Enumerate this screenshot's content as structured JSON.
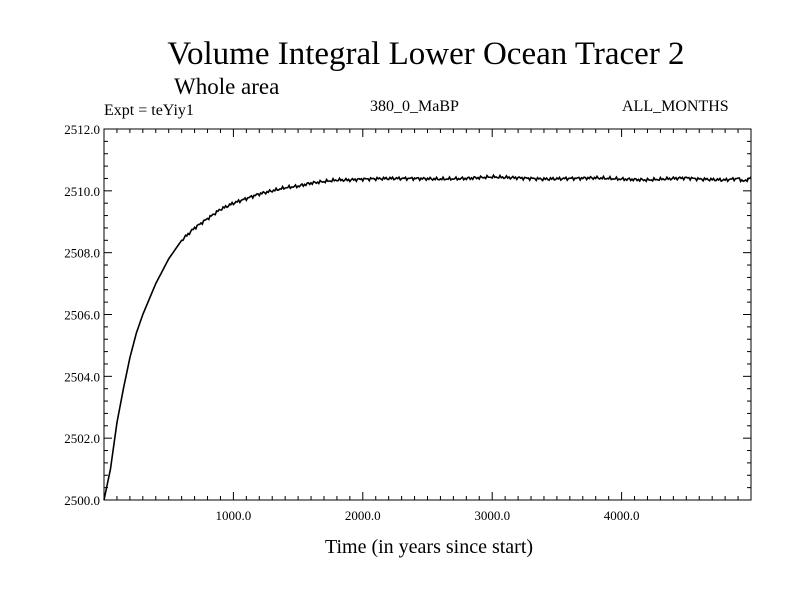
{
  "chart_data": {
    "type": "line",
    "title": "Volume Integral Lower Ocean Tracer 2",
    "subtitle": "Whole area",
    "experiment": "Expt = teYiy1",
    "period": "380_0_MaBP",
    "season": "ALL_MONTHS",
    "xlabel": "Time (in years since start)",
    "ylabel": "",
    "xlim": [
      0,
      5000
    ],
    "ylim": [
      2500.0,
      2512.0
    ],
    "xticks": [
      1000,
      2000,
      3000,
      4000
    ],
    "xtick_labels": [
      "1000.0",
      "2000.0",
      "3000.0",
      "4000.0"
    ],
    "yticks": [
      2500,
      2502,
      2504,
      2506,
      2508,
      2510,
      2512
    ],
    "ytick_labels": [
      "2500.0",
      "2502.0",
      "2504.0",
      "2506.0",
      "2508.0",
      "2510.0",
      "2512.0"
    ],
    "series": [
      {
        "name": "Lower Ocean Tracer 2",
        "color": "#000000",
        "x": [
          0,
          50,
          100,
          150,
          200,
          250,
          300,
          400,
          500,
          600,
          700,
          800,
          900,
          1000,
          1100,
          1200,
          1300,
          1400,
          1500,
          1600,
          1700,
          1800,
          1900,
          2000,
          2200,
          2400,
          2600,
          2800,
          3000,
          3200,
          3400,
          3600,
          3800,
          4000,
          4200,
          4400,
          4500,
          4600,
          4800,
          4900,
          4950,
          5000
        ],
        "values": [
          2500.0,
          2501.0,
          2502.5,
          2503.6,
          2504.6,
          2505.4,
          2506.0,
          2507.0,
          2507.8,
          2508.4,
          2508.8,
          2509.1,
          2509.4,
          2509.6,
          2509.75,
          2509.9,
          2510.0,
          2510.1,
          2510.15,
          2510.25,
          2510.3,
          2510.35,
          2510.35,
          2510.38,
          2510.4,
          2510.4,
          2510.38,
          2510.4,
          2510.45,
          2510.42,
          2510.38,
          2510.4,
          2510.42,
          2510.38,
          2510.35,
          2510.4,
          2510.42,
          2510.38,
          2510.35,
          2510.4,
          2510.3,
          2510.45
        ]
      }
    ]
  }
}
